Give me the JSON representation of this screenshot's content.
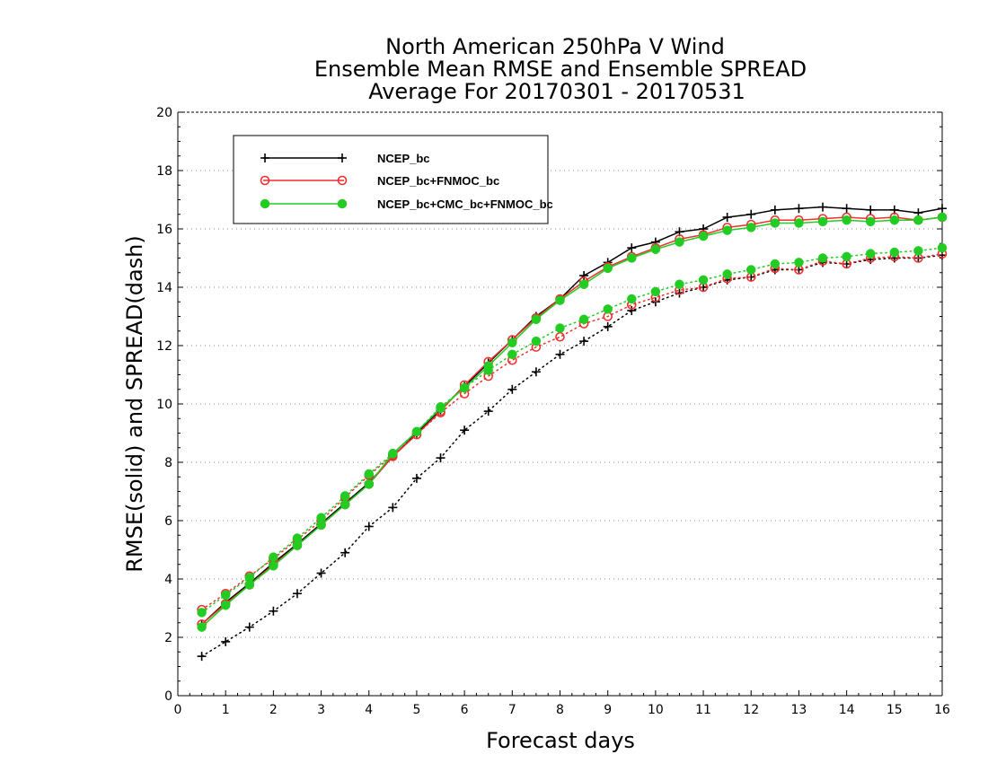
{
  "chart_data": {
    "type": "line",
    "title": [
      "North American 250hPa V Wind",
      "Ensemble Mean RMSE and Ensemble SPREAD",
      "Average For 20170301 - 20170531"
    ],
    "xlabel": "Forecast days",
    "ylabel": "RMSE(solid) and SPREAD(dash)",
    "xlim": [
      0,
      16
    ],
    "ylim": [
      0,
      20
    ],
    "xticks": [
      0,
      1,
      2,
      3,
      4,
      5,
      6,
      7,
      8,
      9,
      10,
      11,
      12,
      13,
      14,
      15,
      16
    ],
    "yticks": [
      0,
      2,
      4,
      6,
      8,
      10,
      12,
      14,
      16,
      18,
      20
    ],
    "grid": "horizontal dotted",
    "legend_position": "top-left",
    "x": [
      0.5,
      1,
      1.5,
      2,
      2.5,
      3,
      3.5,
      4,
      4.5,
      5,
      5.5,
      6,
      6.5,
      7,
      7.5,
      8,
      8.5,
      9,
      9.5,
      10,
      10.5,
      11,
      11.5,
      12,
      12.5,
      13,
      13.5,
      14,
      14.5,
      15,
      15.5,
      16
    ],
    "series": [
      {
        "name": "NCEP_bc",
        "color": "#000000",
        "marker": "plus",
        "rmse": [
          2.45,
          3.2,
          3.85,
          4.55,
          5.2,
          5.9,
          6.6,
          7.3,
          8.2,
          9.0,
          9.8,
          10.6,
          11.4,
          12.2,
          13.0,
          13.6,
          14.4,
          14.85,
          15.35,
          15.55,
          15.9,
          16.0,
          16.4,
          16.5,
          16.65,
          16.7,
          16.75,
          16.7,
          16.65,
          16.65,
          16.55,
          16.7
        ],
        "spread": [
          1.35,
          1.85,
          2.35,
          2.9,
          3.5,
          4.2,
          4.9,
          5.8,
          6.45,
          7.45,
          8.15,
          9.1,
          9.75,
          10.5,
          11.1,
          11.7,
          12.15,
          12.65,
          13.2,
          13.5,
          13.8,
          14.0,
          14.25,
          14.35,
          14.6,
          14.6,
          14.85,
          14.8,
          14.95,
          15.0,
          15.0,
          15.1
        ]
      },
      {
        "name": "NCEP_bc+FNMOC_bc",
        "color": "#ee3030",
        "marker": "open-circle",
        "rmse": [
          2.45,
          3.15,
          3.8,
          4.5,
          5.15,
          5.85,
          6.55,
          7.25,
          8.2,
          8.95,
          9.75,
          10.65,
          11.45,
          12.2,
          12.95,
          13.6,
          14.2,
          14.7,
          15.05,
          15.35,
          15.65,
          15.8,
          16.05,
          16.15,
          16.3,
          16.3,
          16.35,
          16.4,
          16.35,
          16.4,
          16.3,
          16.4
        ],
        "spread": [
          2.95,
          3.5,
          4.1,
          4.7,
          5.35,
          6.0,
          6.8,
          7.55,
          8.25,
          8.95,
          9.7,
          10.35,
          10.95,
          11.5,
          11.95,
          12.3,
          12.75,
          13.0,
          13.4,
          13.65,
          13.9,
          14.0,
          14.3,
          14.35,
          14.65,
          14.6,
          14.9,
          14.8,
          15.0,
          15.05,
          15.0,
          15.15
        ]
      },
      {
        "name": "NCEP_bc+CMC_bc+FNMOC_bc",
        "color": "#22cc22",
        "marker": "filled-circle",
        "rmse": [
          2.35,
          3.1,
          3.8,
          4.45,
          5.15,
          5.85,
          6.55,
          7.25,
          8.3,
          9.05,
          9.85,
          10.55,
          11.3,
          12.1,
          12.9,
          13.55,
          14.1,
          14.65,
          15.0,
          15.3,
          15.55,
          15.75,
          15.95,
          16.05,
          16.2,
          16.2,
          16.25,
          16.3,
          16.25,
          16.3,
          16.3,
          16.4
        ],
        "spread": [
          2.85,
          3.45,
          4.05,
          4.75,
          5.4,
          6.1,
          6.85,
          7.6,
          8.3,
          9.05,
          9.9,
          10.55,
          11.15,
          11.7,
          12.15,
          12.6,
          12.9,
          13.25,
          13.6,
          13.85,
          14.1,
          14.25,
          14.45,
          14.6,
          14.8,
          14.85,
          15.0,
          15.05,
          15.15,
          15.2,
          15.25,
          15.35
        ]
      }
    ]
  }
}
